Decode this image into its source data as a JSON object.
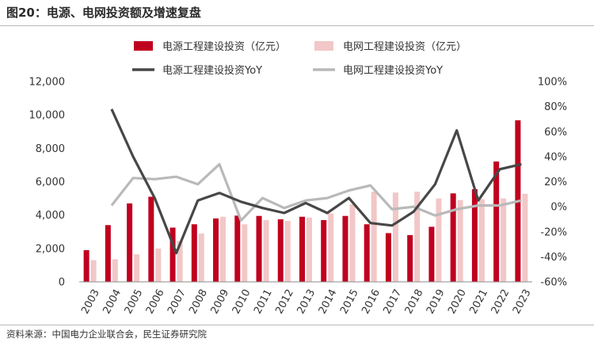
{
  "figure_title": "图20：电源、电网投资额及增速复盘",
  "source": "资料来源：中国电力企业联合会，民生证券研究院",
  "colors": {
    "power_bar": "#c0001f",
    "grid_bar": "#f2c7c7",
    "power_line": "#474747",
    "grid_line": "#b9b9b9"
  },
  "chart_data": {
    "type": "bar",
    "categories": [
      "2003",
      "2004",
      "2005",
      "2006",
      "2007",
      "2008",
      "2009",
      "2010",
      "2011",
      "2012",
      "2013",
      "2014",
      "2015",
      "2016",
      "2017",
      "2018",
      "2019",
      "2020",
      "2021",
      "2022",
      "2023"
    ],
    "series": [
      {
        "name": "电源工程建设投资（亿元）",
        "type": "bar",
        "axis": "left",
        "values": [
          1900,
          3400,
          4700,
          5100,
          3250,
          3450,
          3800,
          3970,
          3950,
          3750,
          3900,
          3700,
          3950,
          3450,
          2920,
          2800,
          3300,
          5300,
          5550,
          7210,
          9680
        ]
      },
      {
        "name": "电网工程建设投资（亿元）",
        "type": "bar",
        "axis": "left",
        "values": [
          1300,
          1350,
          1650,
          2000,
          2450,
          2900,
          3900,
          3450,
          3700,
          3650,
          3850,
          4100,
          4650,
          5400,
          5350,
          5400,
          5000,
          4900,
          4950,
          5000,
          5280
        ]
      },
      {
        "name": "电源工程建设投资YoY",
        "type": "line",
        "axis": "right",
        "values": [
          null,
          78,
          40,
          7,
          -37,
          5,
          11,
          4,
          -1,
          -5,
          3,
          -5,
          7,
          -13,
          -15,
          -4,
          18,
          61,
          5,
          30,
          34
        ]
      },
      {
        "name": "电网工程建设投资YoY",
        "type": "line",
        "axis": "right",
        "values": [
          null,
          1,
          23,
          22,
          24,
          18,
          34,
          -11,
          7,
          -1,
          5,
          7,
          13,
          17,
          -2,
          0,
          -7,
          -2,
          1,
          1,
          5
        ]
      }
    ],
    "y_left": {
      "min": 0,
      "max": 12000,
      "ticks": [
        0,
        2000,
        4000,
        6000,
        8000,
        10000,
        12000
      ],
      "tick_labels": [
        "0",
        "2,000",
        "4,000",
        "6,000",
        "8,000",
        "10,000",
        "12,000"
      ]
    },
    "y_right": {
      "min": -60,
      "max": 100,
      "ticks": [
        -60,
        -40,
        -20,
        0,
        20,
        40,
        60,
        80,
        100
      ],
      "tick_labels": [
        "-60%",
        "-40%",
        "-20%",
        "0%",
        "20%",
        "40%",
        "60%",
        "80%",
        "100%"
      ]
    },
    "grid": false,
    "legend_position": "top"
  }
}
